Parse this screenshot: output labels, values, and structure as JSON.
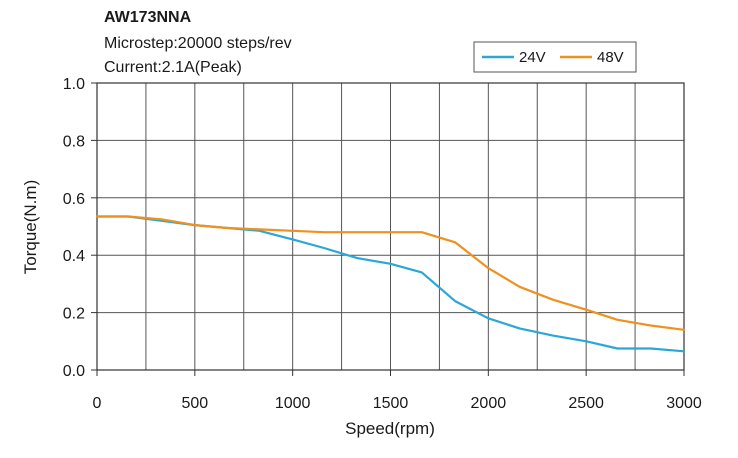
{
  "chart_data": {
    "type": "line",
    "title": "AW173NNA",
    "subtitle_lines": [
      "Microstep:20000 steps/rev",
      "Current:2.1A(Peak)"
    ],
    "xlabel": "Speed(rpm)",
    "ylabel": "Torque(N.m)",
    "xlim": [
      0,
      3000
    ],
    "ylim": [
      0,
      1.0
    ],
    "x_ticks": [
      0,
      500,
      1000,
      1500,
      2000,
      2500,
      3000
    ],
    "x_tick_labels": [
      "0",
      "500",
      "1000",
      "1500",
      "2000",
      "2500",
      "3000"
    ],
    "y_ticks": [
      0,
      0.2,
      0.4,
      0.6,
      0.8,
      1.0
    ],
    "y_tick_labels": [
      "0.0",
      "0.2",
      "0.4",
      "0.6",
      "0.8",
      "1.0"
    ],
    "x_grid_step": 250,
    "grid": true,
    "legend_position": "top-right",
    "series": [
      {
        "name": "24V",
        "color": "#2aa7d8",
        "points": [
          [
            0,
            0.535
          ],
          [
            160,
            0.535
          ],
          [
            330,
            0.52
          ],
          [
            500,
            0.505
          ],
          [
            660,
            0.495
          ],
          [
            830,
            0.485
          ],
          [
            1000,
            0.455
          ],
          [
            1160,
            0.425
          ],
          [
            1330,
            0.39
          ],
          [
            1500,
            0.37
          ],
          [
            1660,
            0.34
          ],
          [
            1830,
            0.24
          ],
          [
            2000,
            0.18
          ],
          [
            2160,
            0.145
          ],
          [
            2330,
            0.12
          ],
          [
            2500,
            0.1
          ],
          [
            2660,
            0.075
          ],
          [
            2830,
            0.075
          ],
          [
            3000,
            0.065
          ]
        ]
      },
      {
        "name": "48V",
        "color": "#f0901e",
        "points": [
          [
            0,
            0.535
          ],
          [
            160,
            0.535
          ],
          [
            330,
            0.525
          ],
          [
            500,
            0.505
          ],
          [
            660,
            0.495
          ],
          [
            830,
            0.49
          ],
          [
            1000,
            0.485
          ],
          [
            1160,
            0.48
          ],
          [
            1330,
            0.48
          ],
          [
            1500,
            0.48
          ],
          [
            1660,
            0.48
          ],
          [
            1830,
            0.445
          ],
          [
            2000,
            0.355
          ],
          [
            2160,
            0.29
          ],
          [
            2330,
            0.245
          ],
          [
            2500,
            0.21
          ],
          [
            2660,
            0.175
          ],
          [
            2830,
            0.155
          ],
          [
            3000,
            0.14
          ]
        ]
      }
    ]
  }
}
